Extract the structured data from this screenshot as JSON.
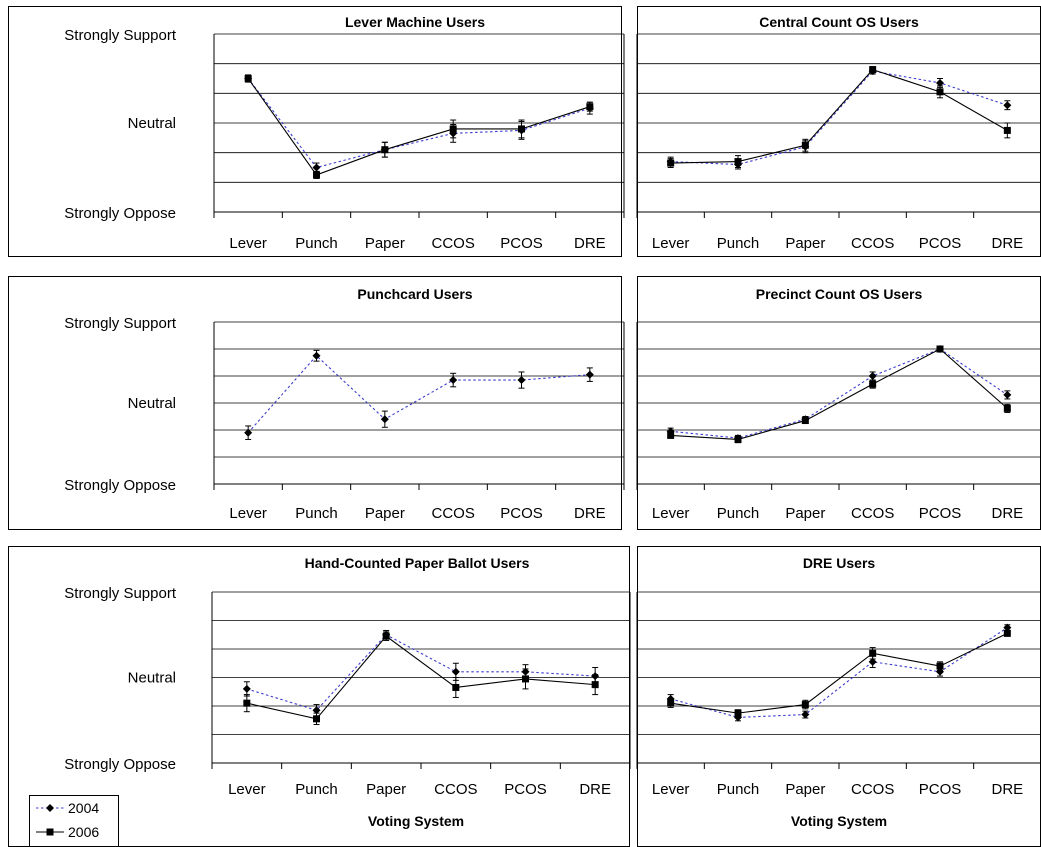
{
  "figure": {
    "y_levels": [
      "Strongly Support",
      "Neutral",
      "Strongly Oppose"
    ],
    "legend": [
      {
        "series": "2004",
        "color": "#3c3cd0",
        "style": "dotted",
        "marker": "diamond"
      },
      {
        "series": "2006",
        "color": "#000000",
        "style": "solid",
        "marker": "square"
      }
    ],
    "x_axis_title": "Voting System"
  },
  "chart_data": [
    {
      "type": "line",
      "title": "Lever Machine Users",
      "categories": [
        "Lever",
        "Punch",
        "Paper",
        "CCOS",
        "PCOS",
        "DRE"
      ],
      "ylim": [
        1,
        5
      ],
      "series": [
        {
          "name": "2004",
          "values": [
            4.5,
            1.5,
            2.1,
            2.65,
            2.75,
            3.5
          ],
          "error": [
            0.12,
            0.15,
            0.25,
            0.3,
            0.3,
            0.2
          ]
        },
        {
          "name": "2006",
          "values": [
            4.5,
            1.25,
            2.1,
            2.8,
            2.8,
            3.55
          ],
          "error": [
            0.12,
            0.12,
            0.25,
            0.3,
            0.3,
            0.15
          ]
        }
      ],
      "legend": "bottom-left",
      "grid": true,
      "show_y_labels": true
    },
    {
      "type": "line",
      "title": "Central Count OS Users",
      "categories": [
        "Lever",
        "Punch",
        "Paper",
        "CCOS",
        "PCOS",
        "DRE"
      ],
      "ylim": [
        1,
        5
      ],
      "series": [
        {
          "name": "2004",
          "values": [
            1.7,
            1.6,
            2.2,
            4.75,
            4.35,
            3.6
          ],
          "error": [
            0.15,
            0.15,
            0.2,
            0.1,
            0.15,
            0.15
          ]
        },
        {
          "name": "2006",
          "values": [
            1.65,
            1.7,
            2.25,
            4.8,
            4.05,
            2.75
          ],
          "error": [
            0.15,
            0.2,
            0.2,
            0.1,
            0.2,
            0.25
          ]
        }
      ],
      "grid": true,
      "show_y_labels": false
    },
    {
      "type": "line",
      "title": "Punchcard Users",
      "categories": [
        "Lever",
        "Punch",
        "Paper",
        "CCOS",
        "PCOS",
        "DRE"
      ],
      "ylim": [
        1,
        5
      ],
      "series": [
        {
          "name": "2004",
          "values": [
            1.9,
            4.75,
            2.4,
            3.85,
            3.85,
            4.05
          ],
          "error": [
            0.25,
            0.2,
            0.3,
            0.25,
            0.3,
            0.25
          ]
        }
      ],
      "grid": true,
      "show_y_labels": true
    },
    {
      "type": "line",
      "title": "Precinct Count OS Users",
      "categories": [
        "Lever",
        "Punch",
        "Paper",
        "CCOS",
        "PCOS",
        "DRE"
      ],
      "ylim": [
        1,
        5
      ],
      "series": [
        {
          "name": "2004",
          "values": [
            1.95,
            1.7,
            2.4,
            4.0,
            5.0,
            3.3
          ],
          "error": [
            0.12,
            0.1,
            0.1,
            0.15,
            0.05,
            0.15
          ]
        },
        {
          "name": "2006",
          "values": [
            1.8,
            1.65,
            2.35,
            3.7,
            5.0,
            2.8
          ],
          "error": [
            0.1,
            0.12,
            0.1,
            0.15,
            0.05,
            0.15
          ]
        }
      ],
      "grid": true,
      "show_y_labels": false
    },
    {
      "type": "line",
      "title": "Hand-Counted Paper Ballot Users",
      "categories": [
        "Lever",
        "Punch",
        "Paper",
        "CCOS",
        "PCOS",
        "DRE"
      ],
      "ylim": [
        1,
        5
      ],
      "series": [
        {
          "name": "2004",
          "values": [
            2.6,
            1.85,
            4.5,
            3.2,
            3.2,
            3.05
          ],
          "error": [
            0.25,
            0.2,
            0.15,
            0.3,
            0.25,
            0.3
          ]
        },
        {
          "name": "2006",
          "values": [
            2.1,
            1.55,
            4.45,
            2.65,
            2.95,
            2.75
          ],
          "error": [
            0.3,
            0.2,
            0.15,
            0.35,
            0.35,
            0.35
          ]
        }
      ],
      "grid": true,
      "show_y_labels": true,
      "xlabel": "Voting System"
    },
    {
      "type": "line",
      "title": "DRE Users",
      "categories": [
        "Lever",
        "Punch",
        "Paper",
        "CCOS",
        "PCOS",
        "DRE"
      ],
      "ylim": [
        1,
        5
      ],
      "series": [
        {
          "name": "2004",
          "values": [
            2.25,
            1.6,
            1.7,
            3.55,
            3.2,
            4.75
          ],
          "error": [
            0.15,
            0.12,
            0.12,
            0.2,
            0.15,
            0.1
          ]
        },
        {
          "name": "2006",
          "values": [
            2.1,
            1.75,
            2.05,
            3.85,
            3.4,
            4.55
          ],
          "error": [
            0.15,
            0.12,
            0.15,
            0.2,
            0.15,
            0.1
          ]
        }
      ],
      "grid": true,
      "show_y_labels": false,
      "xlabel": "Voting System"
    }
  ]
}
